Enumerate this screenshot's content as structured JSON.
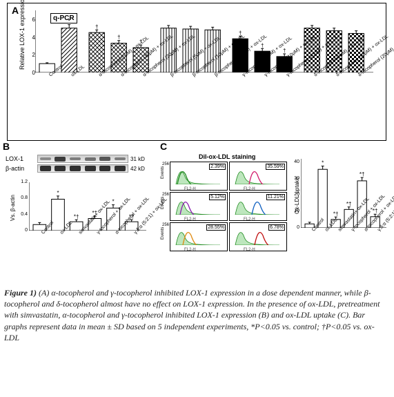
{
  "panelA": {
    "label": "A",
    "box_label": "q-PCR",
    "y_axis_label": "Relative LOX-1 expression",
    "y_ticks": [
      0,
      2,
      4,
      6
    ],
    "ymax": 7,
    "bar_fill_patterns": [
      "white",
      "hatch",
      "cross",
      "cross",
      "cross",
      "vstripe",
      "vstripe",
      "vstripe",
      "black",
      "black",
      "black",
      "checker",
      "checker",
      "checker"
    ],
    "categories": [
      "Control",
      "ox-LDL",
      "α-tocopherol (5μM) + ox-LDL",
      "α-tocopherol (10μM) + ox-LDL",
      "α-tocopherol (20μM) + ox-LDL",
      "β-tocopherol (5μM) + ox-LDL",
      "β-tocopherol (10μM) + ox-LDL",
      "β-tocopherol (20μM) + ox-LDL",
      "γ-tocopherol (5μM) + ox-LDL",
      "γ-tocopherol (10μM) + ox-LDL",
      "γ-tocopherol (20μM) + ox-LDL",
      "δ-tocopherol (5μM) + ox-LDL",
      "δ-tocopherol (10μM) + ox-LDL",
      "δ-tocopherol (20μM) + ox-LDL"
    ],
    "values": [
      1.0,
      5.0,
      4.5,
      3.3,
      2.8,
      5.0,
      4.9,
      4.8,
      3.8,
      2.4,
      1.8,
      5.0,
      4.7,
      4.4
    ],
    "errors": [
      0.1,
      0.4,
      0.3,
      0.3,
      0.3,
      0.3,
      0.3,
      0.3,
      0.3,
      0.3,
      0.3,
      0.3,
      0.3,
      0.3
    ],
    "sig": [
      "",
      "*",
      "†",
      "†",
      "†",
      "",
      "",
      "",
      "†",
      "†",
      "†",
      "",
      "",
      ""
    ],
    "group_gaps_after": [
      1,
      4,
      7,
      10
    ]
  },
  "panelB": {
    "label": "B",
    "blot_rows": [
      {
        "name": "LOX-1",
        "kd": "31 kD",
        "intensities": [
          0.2,
          0.8,
          0.3,
          0.4,
          0.6,
          0.3
        ]
      },
      {
        "name": "β-actin",
        "kd": "42 kD",
        "intensities": [
          0.9,
          0.9,
          0.9,
          0.9,
          0.9,
          0.9
        ]
      }
    ],
    "y_axis_label": "Vs. β-actin",
    "y_ticks": [
      0,
      0.4,
      0.8,
      1.2
    ],
    "ymax": 1.2,
    "categories": [
      "Control",
      "ox-LDL",
      "simvastatin+ ox-LDL",
      "γ-tocopherol + ox-LDL",
      "α-tocopherol + ox-LDL",
      "γ:δ:α (5:2:1) + ox-LDL"
    ],
    "values": [
      0.15,
      0.78,
      0.22,
      0.3,
      0.56,
      0.22
    ],
    "errors": [
      0.05,
      0.08,
      0.05,
      0.06,
      0.08,
      0.05
    ],
    "sig": [
      "",
      "*",
      "*†",
      "*†",
      "*",
      "*†"
    ],
    "bar_fill": "#ffffff"
  },
  "panelC": {
    "label": "C",
    "header": "Dil-ox-LDL staining",
    "flow_cells": [
      {
        "pct": "2.39%",
        "color": "#1d8a1d"
      },
      {
        "pct": "35.59%",
        "color": "#d11a6b"
      },
      {
        "pct": "5.12%",
        "color": "#8a1daf"
      },
      {
        "pct": "11.21%",
        "color": "#1060c0"
      },
      {
        "pct": "28.55%",
        "color": "#e08a10"
      },
      {
        "pct": "6.78%",
        "color": "#c01010"
      }
    ],
    "flow_x_label": "FL2-H",
    "flow_y_label": "Events",
    "flow_y_max": "256",
    "bar_y_label": "Ox-LDL uptake",
    "y_ticks": [
      0,
      10,
      20,
      30,
      40
    ],
    "ymax": 42,
    "categories": [
      "Control",
      "ox-LDL",
      "simvastatin+ ox-LDL",
      "γ-tocopherol + ox-LDL",
      "α-tocopherol + ox-LDL",
      "γ:δ:α (5:2:1) + ox-LDL"
    ],
    "values": [
      2.4,
      35.6,
      5.1,
      11.2,
      28.6,
      6.8
    ],
    "errors": [
      1,
      2,
      1.5,
      1.5,
      2,
      1.5
    ],
    "sig": [
      "",
      "*",
      "*†",
      "*†",
      "*†",
      "*†"
    ],
    "bar_fill": "#ffffff"
  },
  "caption": {
    "lead": "Figure 1)",
    "body": " (A) α-tocopherol and γ-tocopherol inhibited LOX-1 expression in a dose dependent manner, while β-tocopherol and δ-tocopherol almost have no effect on LOX-1 expression. In the presence of ox-LDL, pretreatment with simvastatin, α-tocopherol and γ-tocopherol inhibited LOX-1 expression (B) and ox-LDL uptake (C). Bar graphs represent data in mean ± SD based on 5 independent experiments, *P<0.05 vs. control; †P<0.05 vs. ox-LDL"
  },
  "colors": {
    "axis": "#000000",
    "bar_stroke": "#000000"
  }
}
